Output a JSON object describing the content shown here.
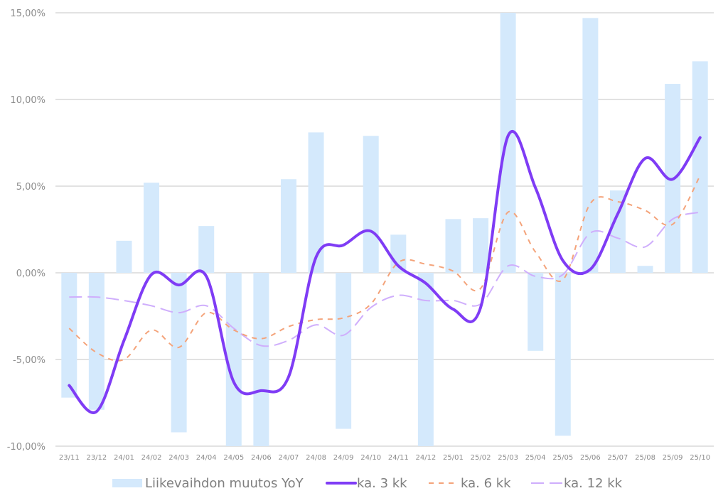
{
  "chart_data": {
    "type": "bar+line",
    "title": "",
    "xlabel": "",
    "ylabel": "",
    "ylim": [
      -10,
      15
    ],
    "ytick_step": 5,
    "ytick_labels": [
      "-10,00%",
      "-5,00%",
      "0,00%",
      "5,00%",
      "10,00%",
      "15,00%"
    ],
    "grid": true,
    "legend_position": "bottom",
    "categories": [
      "23/11",
      "23/12",
      "24/01",
      "24/02",
      "24/03",
      "24/04",
      "24/05",
      "24/06",
      "24/07",
      "24/08",
      "24/09",
      "24/10",
      "24/11",
      "24/12",
      "25/01",
      "25/02",
      "25/03",
      "25/04",
      "25/05",
      "25/06",
      "25/07",
      "25/08",
      "25/09",
      "25/10"
    ],
    "series": [
      {
        "name": "Liikevaihdon muutos YoY",
        "kind": "bar",
        "color": "#d4e9fc",
        "values": [
          -7.2,
          -7.9,
          1.85,
          5.2,
          -9.2,
          2.7,
          -10.5,
          -10.5,
          5.4,
          8.1,
          -9.0,
          7.9,
          2.2,
          -10.5,
          3.1,
          3.15,
          16.0,
          -4.5,
          -9.4,
          14.7,
          4.75,
          0.4,
          10.9,
          12.2
        ]
      },
      {
        "name": "ka. 3 kk",
        "kind": "line",
        "style": "solid",
        "color": "#7f3cf5",
        "values": [
          -6.5,
          -8.0,
          -3.9,
          -0.1,
          -0.7,
          -0.2,
          -6.3,
          -6.8,
          -6.0,
          0.9,
          1.6,
          2.4,
          0.4,
          -0.6,
          -2.1,
          -2.0,
          7.9,
          4.9,
          0.7,
          0.2,
          3.4,
          6.6,
          5.4,
          7.8
        ]
      },
      {
        "name": "ka. 6 kk",
        "kind": "line",
        "style": "dashed",
        "color": "#f4a37a",
        "values": [
          -3.2,
          -4.6,
          -5.0,
          -3.3,
          -4.3,
          -2.3,
          -3.3,
          -3.8,
          -3.1,
          -2.7,
          -2.6,
          -1.8,
          0.6,
          0.5,
          0.1,
          -0.9,
          3.5,
          1.2,
          -0.4,
          4.0,
          4.1,
          3.6,
          2.8,
          5.6
        ]
      },
      {
        "name": "ka. 12 kk",
        "kind": "line",
        "style": "long-dashed",
        "color": "#cfaefc",
        "values": [
          -1.4,
          -1.4,
          -1.6,
          -1.9,
          -2.3,
          -1.9,
          -3.2,
          -4.2,
          -3.9,
          -3.0,
          -3.6,
          -2.0,
          -1.3,
          -1.6,
          -1.6,
          -1.8,
          0.4,
          -0.2,
          -0.1,
          2.3,
          2.0,
          1.5,
          3.1,
          3.5
        ]
      }
    ]
  }
}
